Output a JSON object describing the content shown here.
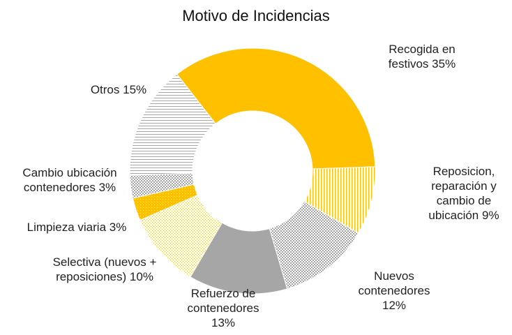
{
  "chart_data": {
    "type": "donut",
    "title": "Motivo de Incidencias",
    "categories": [
      "Recogida en festivos",
      "Reposicion, reparación y cambio de ubicación",
      "Nuevos contenedores",
      "Refuerzo de contenedores",
      "Selectiva (nuevos + reposiciones)",
      "Limpieza viaria",
      "Cambio ubicación contenedores",
      "Otros"
    ],
    "values": [
      35,
      9,
      12,
      13,
      10,
      3,
      3,
      15
    ],
    "value_labels": [
      "35%",
      "9%",
      "12%",
      "13%",
      "10%",
      "3%",
      "3%",
      "15%"
    ],
    "colors": [
      "#ffc000",
      "#ffc000",
      "#a6a6a6",
      "#a6a6a6",
      "#ffc000",
      "#ffc000",
      "#a6a6a6",
      "#a6a6a6"
    ],
    "fills": [
      "solid",
      "vertical",
      "dots",
      "solid",
      "cross",
      "dense",
      "dots",
      "horizontal"
    ]
  }
}
